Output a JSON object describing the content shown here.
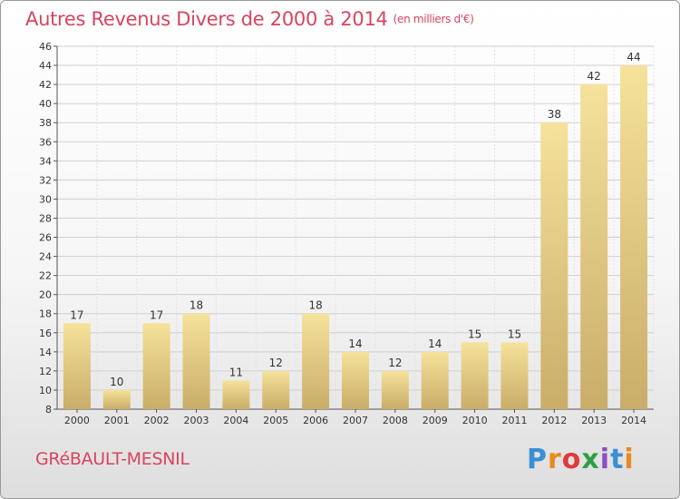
{
  "title": {
    "main": "Autres Revenus Divers de 2000 à 2014",
    "unit": "(en milliers d'€)"
  },
  "place": "GRéBAULT-MESNIL",
  "logo": {
    "letters": [
      "P",
      "r",
      "o",
      "x",
      "i",
      "t",
      "i"
    ],
    "colors": [
      "#3a8fd6",
      "#e98a1b",
      "#e03a3a",
      "#2e9e46",
      "#8a4fc4",
      "#3a8fd6",
      "#e98a1b"
    ]
  },
  "colors": {
    "bar_light": "#f6e29a",
    "bar_dark": "#c9ad68",
    "title": "#d8445f",
    "grid": "#cfcfcf"
  },
  "chart_data": {
    "type": "bar",
    "title": "Autres Revenus Divers de 2000 à 2014",
    "xlabel": "",
    "ylabel": "",
    "categories": [
      "2000",
      "2001",
      "2002",
      "2003",
      "2004",
      "2005",
      "2006",
      "2007",
      "2008",
      "2009",
      "2010",
      "2011",
      "2012",
      "2013",
      "2014"
    ],
    "values": [
      17,
      10,
      17,
      18,
      11,
      12,
      18,
      14,
      12,
      14,
      15,
      15,
      38,
      42,
      44
    ],
    "ylim": [
      8,
      46
    ],
    "yticks": [
      8,
      10,
      12,
      14,
      16,
      18,
      20,
      22,
      24,
      26,
      28,
      30,
      32,
      34,
      36,
      38,
      40,
      42,
      44,
      46
    ],
    "grid": true,
    "data_labels": true
  }
}
